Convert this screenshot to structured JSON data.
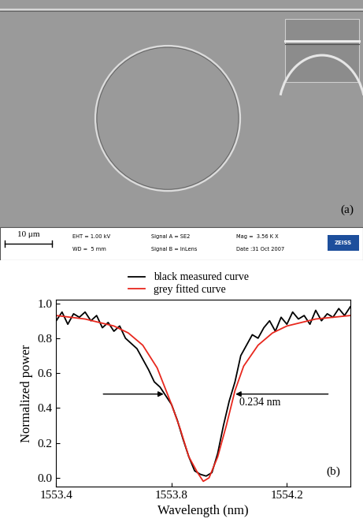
{
  "sem_image": {
    "panel_label": "(a)",
    "scale_bar": "10 μm",
    "info": [
      "EHT = 1.00 kV",
      "WD =  5 mm",
      "Signal A = SE2",
      "Signal B = InLens",
      "Mag =  3.56 K X",
      "Date :31 Oct 2007"
    ],
    "logo": "ZEISS"
  },
  "chart_data": {
    "type": "line",
    "panel_label": "(b)",
    "x_label": "Wavelength (nm)",
    "y_label": "Normalized power",
    "xlim": [
      1553.4,
      1554.42
    ],
    "ylim": [
      -0.05,
      1.02
    ],
    "xticks": [
      1553.4,
      1553.8,
      1554.2
    ],
    "yticks": [
      0.0,
      0.2,
      0.4,
      0.6,
      0.8,
      1.0
    ],
    "legend": "upper center",
    "annotations": [
      {
        "text": "0.234 nm",
        "level": 0.48,
        "left": 1553.78,
        "right": 1554.014
      }
    ],
    "series": [
      {
        "name": "black measured curve",
        "color": "#000000",
        "x": [
          1553.4,
          1553.42,
          1553.44,
          1553.46,
          1553.48,
          1553.5,
          1553.52,
          1553.54,
          1553.56,
          1553.58,
          1553.6,
          1553.62,
          1553.64,
          1553.66,
          1553.68,
          1553.7,
          1553.72,
          1553.74,
          1553.76,
          1553.78,
          1553.8,
          1553.82,
          1553.84,
          1553.86,
          1553.88,
          1553.9,
          1553.92,
          1553.94,
          1553.96,
          1553.98,
          1554.0,
          1554.02,
          1554.04,
          1554.06,
          1554.08,
          1554.1,
          1554.12,
          1554.14,
          1554.16,
          1554.18,
          1554.2,
          1554.22,
          1554.24,
          1554.26,
          1554.28,
          1554.3,
          1554.32,
          1554.34,
          1554.36,
          1554.38,
          1554.4,
          1554.42
        ],
        "values": [
          0.9,
          0.95,
          0.88,
          0.94,
          0.92,
          0.95,
          0.9,
          0.93,
          0.86,
          0.89,
          0.84,
          0.87,
          0.8,
          0.77,
          0.74,
          0.68,
          0.62,
          0.55,
          0.52,
          0.47,
          0.42,
          0.33,
          0.22,
          0.12,
          0.04,
          0.02,
          0.01,
          0.03,
          0.14,
          0.3,
          0.44,
          0.55,
          0.7,
          0.76,
          0.82,
          0.8,
          0.86,
          0.9,
          0.84,
          0.92,
          0.88,
          0.95,
          0.91,
          0.93,
          0.88,
          0.96,
          0.9,
          0.94,
          0.92,
          0.97,
          0.93,
          0.98
        ]
      },
      {
        "name": "grey fitted curve",
        "color": "#e8281e",
        "x": [
          1553.4,
          1553.5,
          1553.6,
          1553.65,
          1553.7,
          1553.75,
          1553.8,
          1553.83,
          1553.86,
          1553.89,
          1553.91,
          1553.93,
          1553.96,
          1553.99,
          1554.02,
          1554.05,
          1554.1,
          1554.15,
          1554.2,
          1554.3,
          1554.42
        ],
        "values": [
          0.93,
          0.91,
          0.87,
          0.83,
          0.76,
          0.63,
          0.42,
          0.28,
          0.12,
          0.03,
          -0.02,
          0.0,
          0.12,
          0.3,
          0.5,
          0.64,
          0.76,
          0.83,
          0.87,
          0.91,
          0.93
        ]
      }
    ]
  }
}
